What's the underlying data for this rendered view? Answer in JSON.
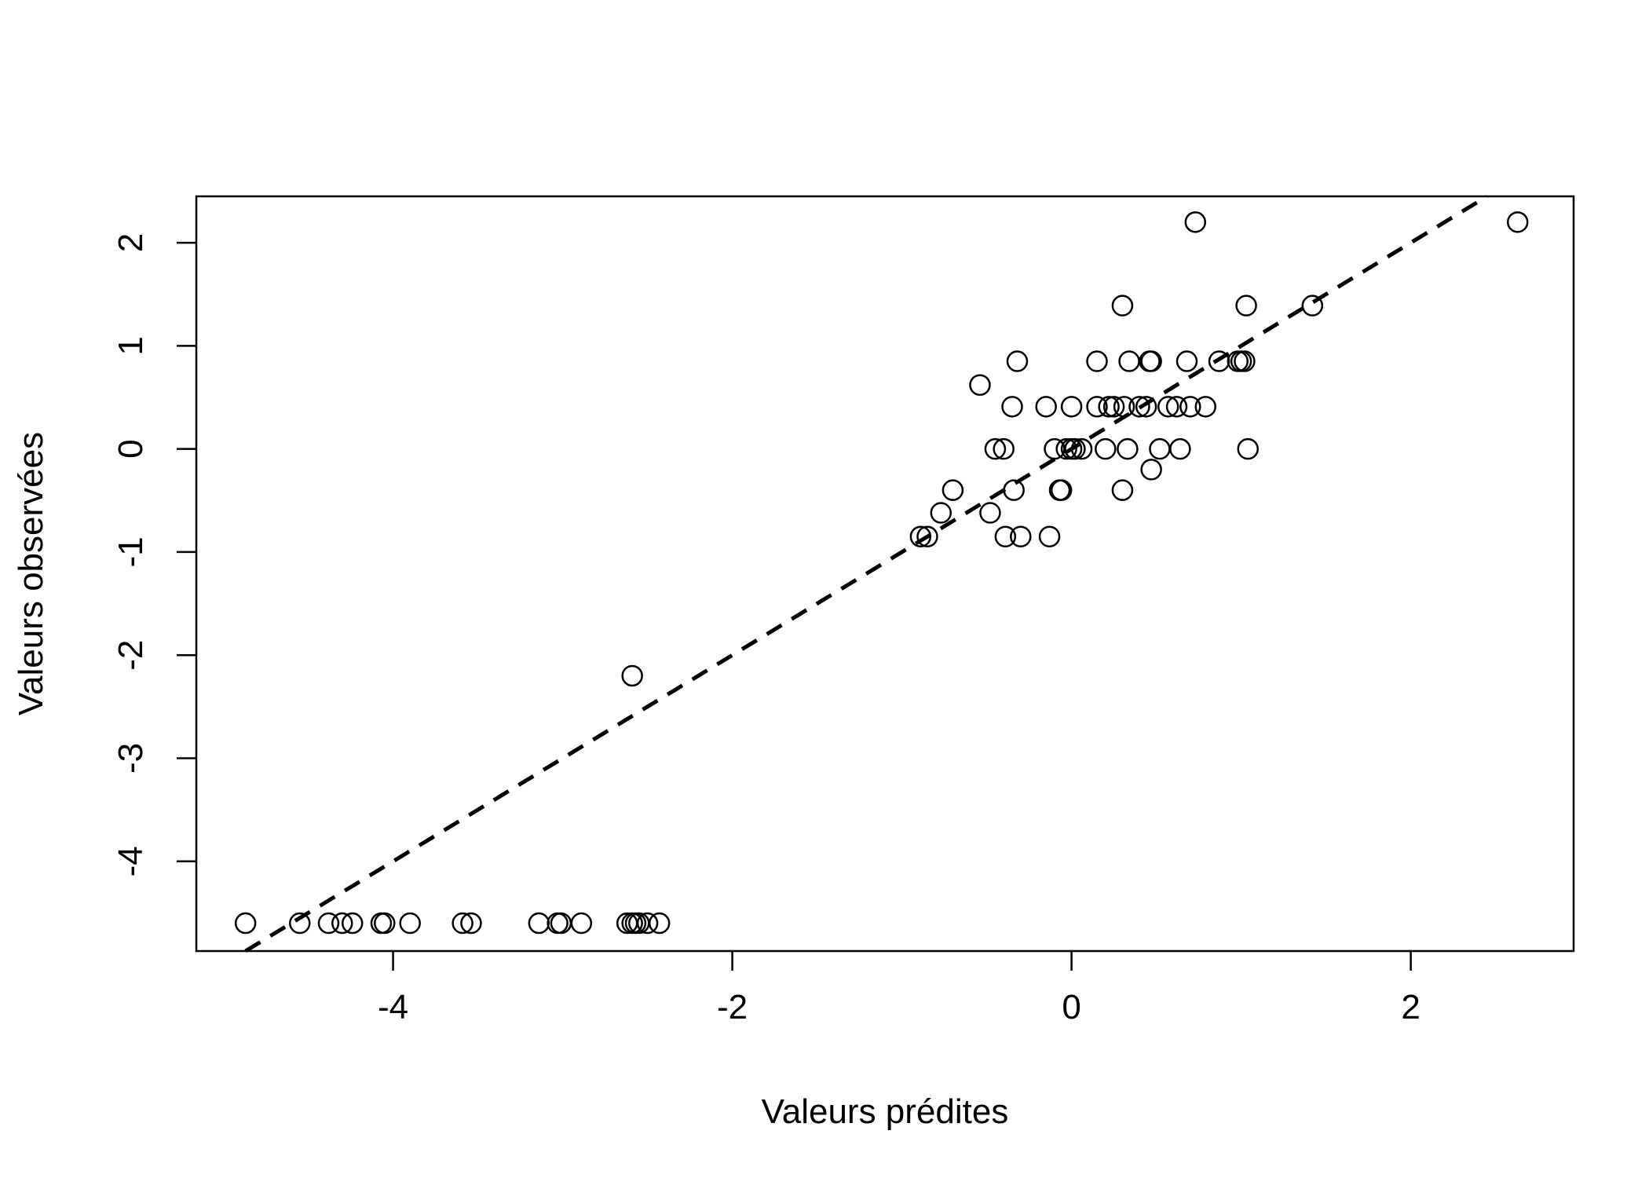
{
  "chart_data": {
    "type": "scatter",
    "xlabel": "Valeurs prédites",
    "ylabel": "Valeurs observées",
    "xlim": [
      -5.16,
      2.96
    ],
    "ylim": [
      -4.87,
      2.45
    ],
    "xticks": [
      -4,
      -2,
      0,
      2
    ],
    "yticks": [
      -4,
      -3,
      -2,
      -1,
      0,
      1,
      2
    ],
    "xtick_labels": [
      "-4",
      "-2",
      "0",
      "2"
    ],
    "ytick_labels": [
      "-4",
      "-3",
      "-2",
      "-1",
      "0",
      "1",
      "2"
    ],
    "grid": false,
    "legend": "none",
    "colors": {
      "points": "#000000",
      "line": "#000000",
      "axes": "#000000"
    },
    "reference_line": {
      "style": "dashed",
      "slope": 1,
      "intercept": 0
    },
    "points": [
      {
        "x": -4.87,
        "y": -4.6
      },
      {
        "x": -4.55,
        "y": -4.6
      },
      {
        "x": -4.38,
        "y": -4.6
      },
      {
        "x": -4.3,
        "y": -4.6
      },
      {
        "x": -4.24,
        "y": -4.6
      },
      {
        "x": -4.07,
        "y": -4.6
      },
      {
        "x": -4.05,
        "y": -4.6
      },
      {
        "x": -3.9,
        "y": -4.6
      },
      {
        "x": -3.59,
        "y": -4.6
      },
      {
        "x": -3.54,
        "y": -4.6
      },
      {
        "x": -3.14,
        "y": -4.6
      },
      {
        "x": -3.03,
        "y": -4.6
      },
      {
        "x": -3.01,
        "y": -4.6
      },
      {
        "x": -2.89,
        "y": -4.6
      },
      {
        "x": -2.62,
        "y": -4.6
      },
      {
        "x": -2.59,
        "y": -4.6
      },
      {
        "x": -2.57,
        "y": -4.6
      },
      {
        "x": -2.55,
        "y": -4.6
      },
      {
        "x": -2.5,
        "y": -4.6
      },
      {
        "x": -2.43,
        "y": -4.6
      },
      {
        "x": -2.59,
        "y": -2.2
      },
      {
        "x": -0.89,
        "y": -0.85
      },
      {
        "x": -0.85,
        "y": -0.85
      },
      {
        "x": -0.77,
        "y": -0.62
      },
      {
        "x": -0.7,
        "y": -0.4
      },
      {
        "x": -0.54,
        "y": 0.62
      },
      {
        "x": -0.48,
        "y": -0.62
      },
      {
        "x": -0.45,
        "y": 0.0
      },
      {
        "x": -0.4,
        "y": 0.0
      },
      {
        "x": -0.39,
        "y": -0.85
      },
      {
        "x": -0.35,
        "y": 0.41
      },
      {
        "x": -0.34,
        "y": -0.4
      },
      {
        "x": -0.32,
        "y": 0.85
      },
      {
        "x": -0.3,
        "y": -0.85
      },
      {
        "x": -0.15,
        "y": 0.41
      },
      {
        "x": -0.13,
        "y": -0.85
      },
      {
        "x": -0.1,
        "y": 0.0
      },
      {
        "x": -0.07,
        "y": -0.4
      },
      {
        "x": -0.06,
        "y": -0.4
      },
      {
        "x": -0.03,
        "y": 0.0
      },
      {
        "x": 0.0,
        "y": 0.41
      },
      {
        "x": 0.0,
        "y": 0.0
      },
      {
        "x": 0.02,
        "y": 0.0
      },
      {
        "x": 0.06,
        "y": 0.0
      },
      {
        "x": 0.15,
        "y": 0.85
      },
      {
        "x": 0.15,
        "y": 0.41
      },
      {
        "x": 0.2,
        "y": 0.0
      },
      {
        "x": 0.22,
        "y": 0.41
      },
      {
        "x": 0.25,
        "y": 0.41
      },
      {
        "x": 0.3,
        "y": 1.39
      },
      {
        "x": 0.3,
        "y": -0.4
      },
      {
        "x": 0.31,
        "y": 0.41
      },
      {
        "x": 0.33,
        "y": 0.0
      },
      {
        "x": 0.34,
        "y": 0.85
      },
      {
        "x": 0.4,
        "y": 0.41
      },
      {
        "x": 0.44,
        "y": 0.41
      },
      {
        "x": 0.46,
        "y": 0.85
      },
      {
        "x": 0.47,
        "y": 0.85
      },
      {
        "x": 0.47,
        "y": -0.2
      },
      {
        "x": 0.52,
        "y": 0.0
      },
      {
        "x": 0.57,
        "y": 0.41
      },
      {
        "x": 0.62,
        "y": 0.41
      },
      {
        "x": 0.64,
        "y": 0.0
      },
      {
        "x": 0.68,
        "y": 0.85
      },
      {
        "x": 0.7,
        "y": 0.41
      },
      {
        "x": 0.73,
        "y": 2.2
      },
      {
        "x": 0.79,
        "y": 0.41
      },
      {
        "x": 0.87,
        "y": 0.85
      },
      {
        "x": 0.98,
        "y": 0.85
      },
      {
        "x": 1.0,
        "y": 0.85
      },
      {
        "x": 1.02,
        "y": 0.85
      },
      {
        "x": 1.03,
        "y": 1.39
      },
      {
        "x": 1.04,
        "y": 0.0
      },
      {
        "x": 1.42,
        "y": 1.39
      },
      {
        "x": 2.63,
        "y": 2.2
      }
    ]
  }
}
